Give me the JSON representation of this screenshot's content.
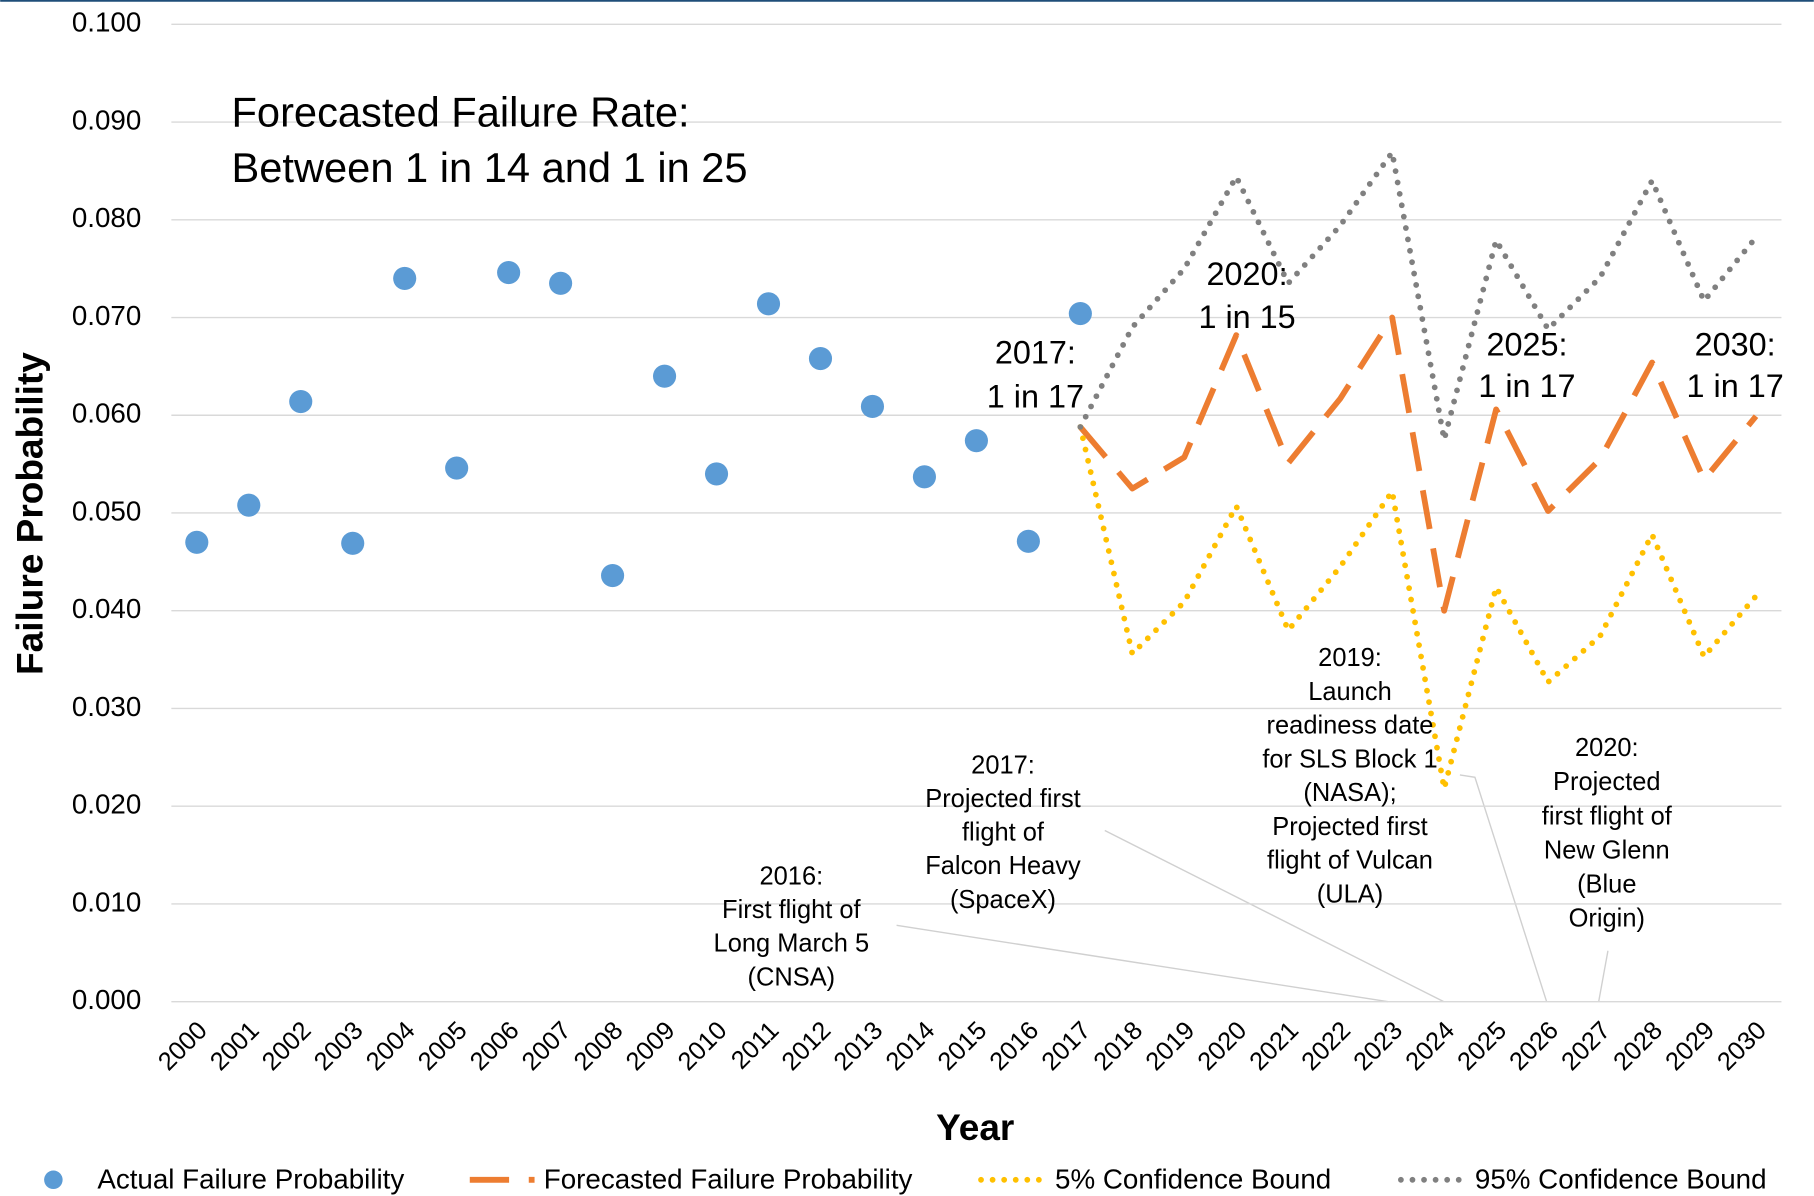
{
  "chart_data": {
    "type": "line",
    "x_label": "Year",
    "y_label": "Failure Probability",
    "x": [
      2000,
      2001,
      2002,
      2003,
      2004,
      2005,
      2006,
      2007,
      2008,
      2009,
      2010,
      2011,
      2012,
      2013,
      2014,
      2015,
      2016,
      2017,
      2018,
      2019,
      2020,
      2021,
      2022,
      2023,
      2024,
      2025,
      2026,
      2027,
      2028,
      2029,
      2030
    ],
    "xlim": [
      2000,
      2030
    ],
    "xticks": [
      2000,
      2001,
      2002,
      2003,
      2004,
      2005,
      2006,
      2007,
      2008,
      2009,
      2010,
      2011,
      2012,
      2013,
      2014,
      2015,
      2016,
      2017,
      2018,
      2019,
      2020,
      2021,
      2022,
      2023,
      2024,
      2025,
      2026,
      2027,
      2028,
      2029,
      2030
    ],
    "ylim": [
      0,
      0.1
    ],
    "yticks": [
      {
        "value": 0,
        "label": "0.000"
      },
      {
        "value": 0.01,
        "label": "0.010"
      },
      {
        "value": 0.02,
        "label": "0.020"
      },
      {
        "value": 0.03,
        "label": "0.030"
      },
      {
        "value": 0.04,
        "label": "0.040"
      },
      {
        "value": 0.05,
        "label": "0.050"
      },
      {
        "value": 0.06,
        "label": "0.060"
      },
      {
        "value": 0.07,
        "label": "0.070"
      },
      {
        "value": 0.08,
        "label": "0.080"
      },
      {
        "value": 0.09,
        "label": "0.090"
      },
      {
        "value": 0.1,
        "label": "0.100"
      }
    ],
    "grid": true,
    "legend": "bottom",
    "series": [
      {
        "name": "Actual Failure Probability",
        "color": "#5b9bd5",
        "style": "marker",
        "values": [
          0.047,
          0.0508,
          0.0614,
          0.0469,
          0.074,
          0.0546,
          0.0746,
          0.0735,
          0.0436,
          0.064,
          0.054,
          0.0714,
          0.0658,
          0.0609,
          0.0537,
          0.0574,
          0.0471,
          0.0704,
          null,
          null,
          null,
          null,
          null,
          null,
          null,
          null,
          null,
          null,
          null,
          null,
          null
        ]
      },
      {
        "name": "Forecasted Failure Probability",
        "color": "#ed7d31",
        "style": "dashed",
        "values": [
          null,
          null,
          null,
          null,
          null,
          null,
          null,
          null,
          null,
          null,
          null,
          null,
          null,
          null,
          null,
          null,
          null,
          0.0588,
          0.0525,
          0.0557,
          0.0682,
          0.0551,
          0.0617,
          0.07,
          0.04,
          0.0606,
          0.0502,
          0.0555,
          0.0654,
          0.0534,
          0.0599
        ]
      },
      {
        "name": "5% Confidence Bound",
        "color": "#ffc000",
        "style": "dotted",
        "values": [
          null,
          null,
          null,
          null,
          null,
          null,
          null,
          null,
          null,
          null,
          null,
          null,
          null,
          null,
          null,
          null,
          null,
          0.0588,
          0.0356,
          0.0409,
          0.0507,
          0.038,
          0.0445,
          0.0522,
          0.0218,
          0.0424,
          0.0327,
          0.0374,
          0.0478,
          0.0353,
          0.0415
        ]
      },
      {
        "name": "95% Confidence Bound",
        "color": "#808080",
        "style": "dotted",
        "values": [
          null,
          null,
          null,
          null,
          null,
          null,
          null,
          null,
          null,
          null,
          null,
          null,
          null,
          null,
          null,
          null,
          null,
          0.0588,
          0.069,
          0.075,
          0.0844,
          0.0735,
          0.0794,
          0.0869,
          0.0575,
          0.0779,
          0.0688,
          0.0741,
          0.084,
          0.0717,
          0.0782
        ]
      }
    ],
    "annotations": [
      [
        "Forecasted Failure Rate:",
        "Between 1 in 14 and 1 in 25"
      ],
      [
        "2017:",
        "1 in 17"
      ],
      [
        "2020:",
        "1 in 15"
      ],
      [
        "2025:",
        "1 in 17"
      ],
      [
        "2030:",
        "1 in 17"
      ],
      [
        "2016:",
        "First flight of",
        "Long March 5",
        "(CNSA)"
      ],
      [
        "2017:",
        "Projected first",
        "flight of",
        "Falcon Heavy",
        "(SpaceX)"
      ],
      [
        "2019:",
        "Launch",
        "readiness date",
        "for SLS Block 1",
        "(NASA);",
        "Projected first",
        "flight of Vulcan",
        "(ULA)"
      ],
      [
        "2020:",
        "Projected",
        "first flight of",
        "New Glenn",
        "(Blue",
        "Origin)"
      ]
    ]
  }
}
